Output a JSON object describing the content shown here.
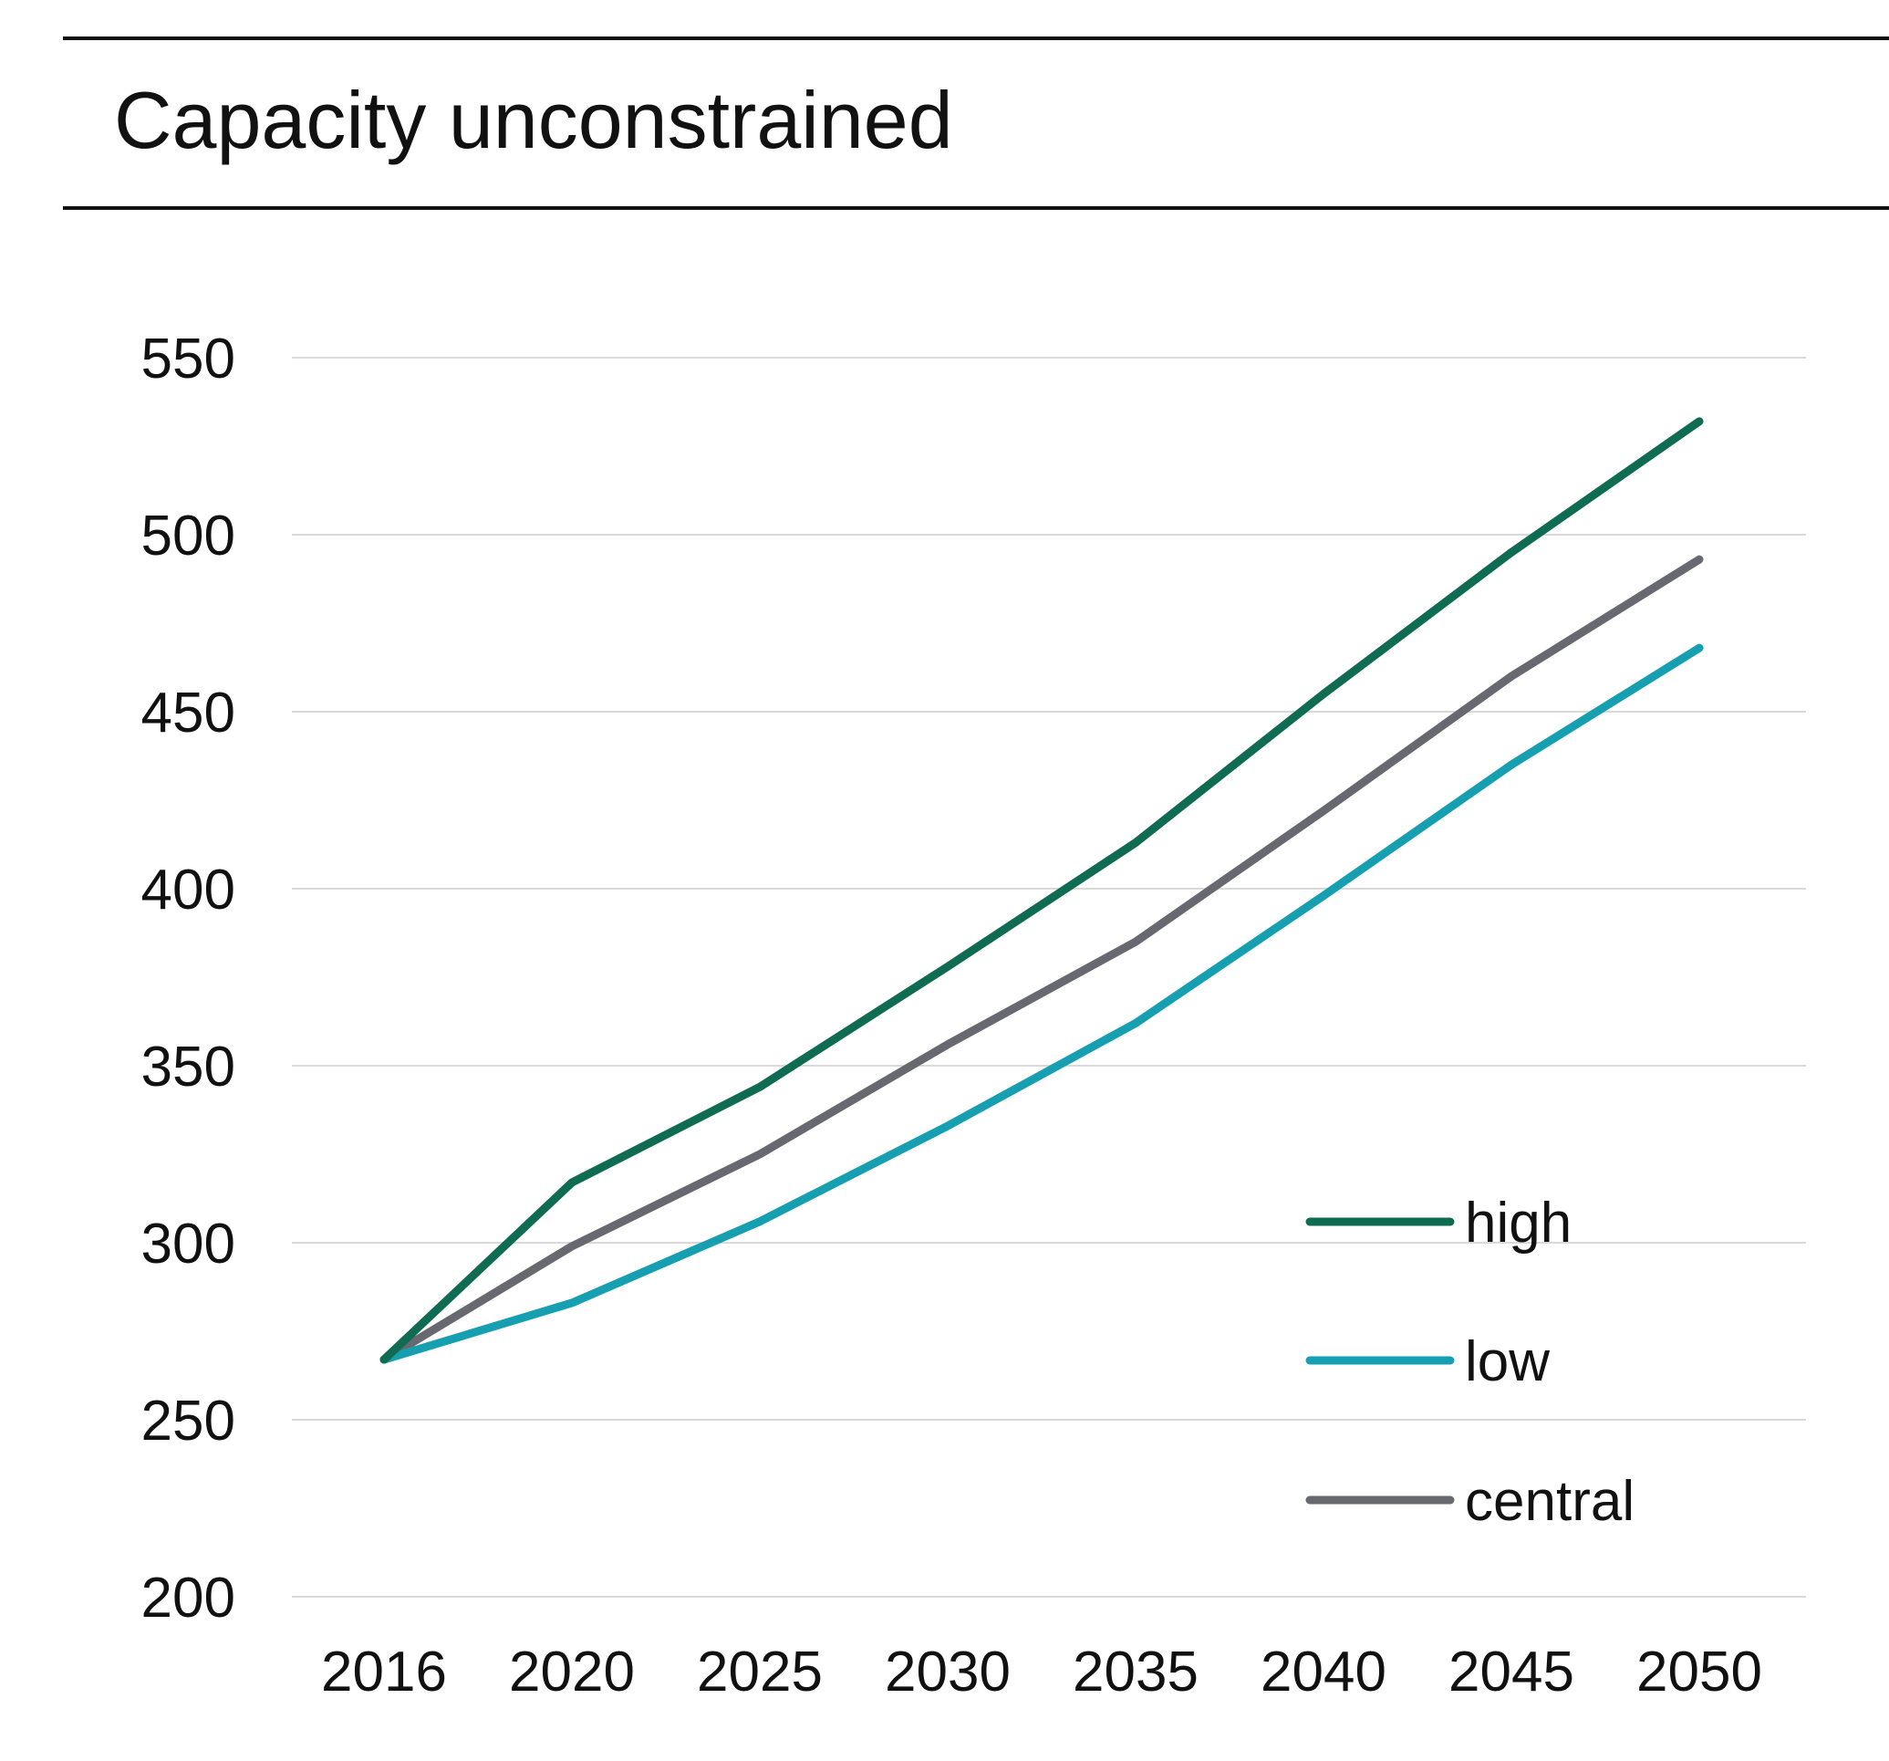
{
  "chart_data": {
    "type": "line",
    "title": "Capacity unconstrained",
    "xlabel": "",
    "ylabel": "",
    "categories": [
      "2016",
      "2020",
      "2025",
      "2030",
      "2035",
      "2040",
      "2045",
      "2050"
    ],
    "ylim": [
      200,
      550
    ],
    "yticks": [
      "550",
      "500",
      "450",
      "400",
      "350",
      "300",
      "250",
      "200"
    ],
    "grid": true,
    "legend_position": "bottom-right",
    "series": [
      {
        "name": "high",
        "color": "#0f6b52",
        "values": [
          267,
          317,
          344,
          378,
          413,
          455,
          495,
          532
        ]
      },
      {
        "name": "low",
        "color": "#159fb0",
        "values": [
          267,
          283,
          306,
          333,
          362,
          398,
          435,
          468
        ]
      },
      {
        "name": "central",
        "color": "#676870",
        "values": [
          267,
          299,
          325,
          356,
          385,
          422,
          460,
          493
        ]
      }
    ]
  }
}
